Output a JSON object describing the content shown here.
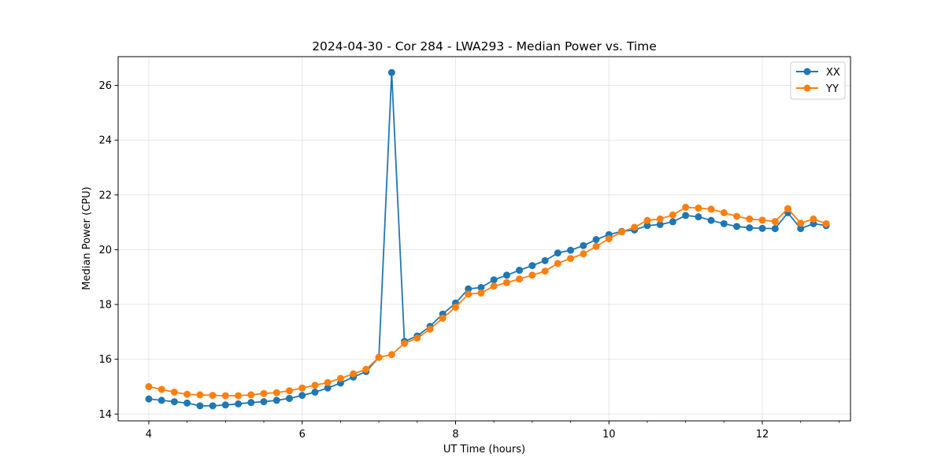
{
  "chart_data": {
    "type": "line",
    "title": "2024-04-30 - Cor 284 - LWA293 - Median Power vs. Time",
    "xlabel": "UT Time (hours)",
    "ylabel": "Median Power (CPU)",
    "xlim": [
      3.6,
      13.15
    ],
    "ylim": [
      13.75,
      27.05
    ],
    "xticks": [
      4,
      6,
      8,
      10,
      12
    ],
    "xtick_labels": [
      "4",
      "6",
      "8",
      "10",
      "12"
    ],
    "yticks": [
      14,
      16,
      18,
      20,
      22,
      24,
      26
    ],
    "ytick_labels": [
      "14",
      "16",
      "18",
      "20",
      "22",
      "24",
      "26"
    ],
    "grid": true,
    "legend_position": "top-right",
    "x": [
      4.0,
      4.167,
      4.333,
      4.5,
      4.667,
      4.833,
      5.0,
      5.167,
      5.333,
      5.5,
      5.667,
      5.833,
      6.0,
      6.167,
      6.333,
      6.5,
      6.667,
      6.833,
      7.0,
      7.167,
      7.333,
      7.5,
      7.667,
      7.833,
      8.0,
      8.167,
      8.333,
      8.5,
      8.667,
      8.833,
      9.0,
      9.167,
      9.333,
      9.5,
      9.667,
      9.833,
      10.0,
      10.167,
      10.333,
      10.5,
      10.667,
      10.833,
      11.0,
      11.167,
      11.333,
      11.5,
      11.667,
      11.833,
      12.0,
      12.167,
      12.333,
      12.5,
      12.667,
      12.833
    ],
    "series": [
      {
        "name": "XX",
        "color": "#1f77b4",
        "values": [
          14.55,
          14.5,
          14.45,
          14.4,
          14.3,
          14.3,
          14.33,
          14.37,
          14.42,
          14.45,
          14.5,
          14.57,
          14.68,
          14.8,
          14.95,
          15.13,
          15.35,
          15.55,
          16.07,
          26.47,
          16.65,
          16.85,
          17.2,
          17.65,
          18.05,
          18.57,
          18.62,
          18.9,
          19.07,
          19.25,
          19.42,
          19.6,
          19.88,
          19.98,
          20.15,
          20.37,
          20.55,
          20.67,
          20.72,
          20.88,
          20.92,
          21.02,
          21.25,
          21.2,
          21.07,
          20.95,
          20.85,
          20.8,
          20.78,
          20.77,
          21.35,
          20.77,
          20.95,
          20.88
        ]
      },
      {
        "name": "YY",
        "color": "#ff7f0e",
        "values": [
          15.0,
          14.9,
          14.8,
          14.72,
          14.7,
          14.68,
          14.67,
          14.67,
          14.7,
          14.75,
          14.78,
          14.85,
          14.95,
          15.05,
          15.15,
          15.3,
          15.47,
          15.63,
          16.07,
          16.17,
          16.58,
          16.77,
          17.1,
          17.5,
          17.9,
          18.38,
          18.42,
          18.67,
          18.8,
          18.93,
          19.07,
          19.22,
          19.5,
          19.68,
          19.85,
          20.12,
          20.4,
          20.65,
          20.82,
          21.07,
          21.12,
          21.27,
          21.55,
          21.52,
          21.48,
          21.35,
          21.22,
          21.12,
          21.08,
          21.03,
          21.5,
          20.97,
          21.12,
          20.95
        ]
      }
    ]
  }
}
